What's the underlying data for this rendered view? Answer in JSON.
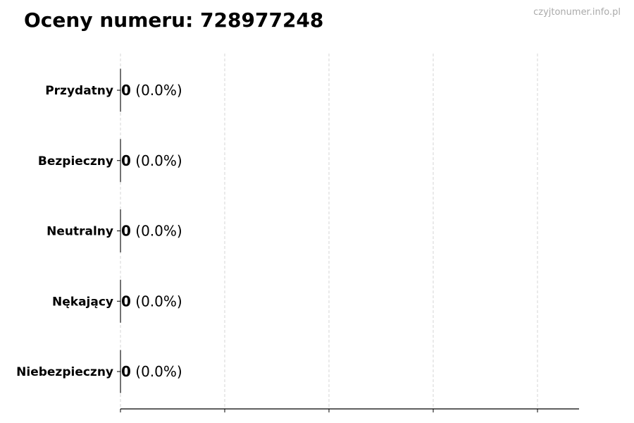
{
  "chart_data": {
    "type": "bar",
    "orientation": "horizontal",
    "title": "Oceny numeru: 728977248",
    "watermark": "czyjtonumer.info.pl",
    "categories": [
      "Przydatny",
      "Bezpieczny",
      "Neutralny",
      "Nękający",
      "Niebezpieczny"
    ],
    "values": [
      0,
      0,
      0,
      0,
      0
    ],
    "data_labels": [
      "0 (0.0%)",
      "0 (0.0%)",
      "0 (0.0%)",
      "0 (0.0%)",
      "0 (0.0%)"
    ],
    "value_labels": [
      "0",
      "0",
      "0",
      "0",
      "0"
    ],
    "percent_labels": [
      "(0.0%)",
      "(0.0%)",
      "(0.0%)",
      "(0.0%)",
      "(0.0%)"
    ],
    "xlabel": "",
    "ylabel": "",
    "x_tick_labels": "none",
    "grid": "x, dashed",
    "colors": {
      "bar_edge": "#000000",
      "grid": "#cccccc",
      "watermark": "#aaaaaa"
    }
  }
}
